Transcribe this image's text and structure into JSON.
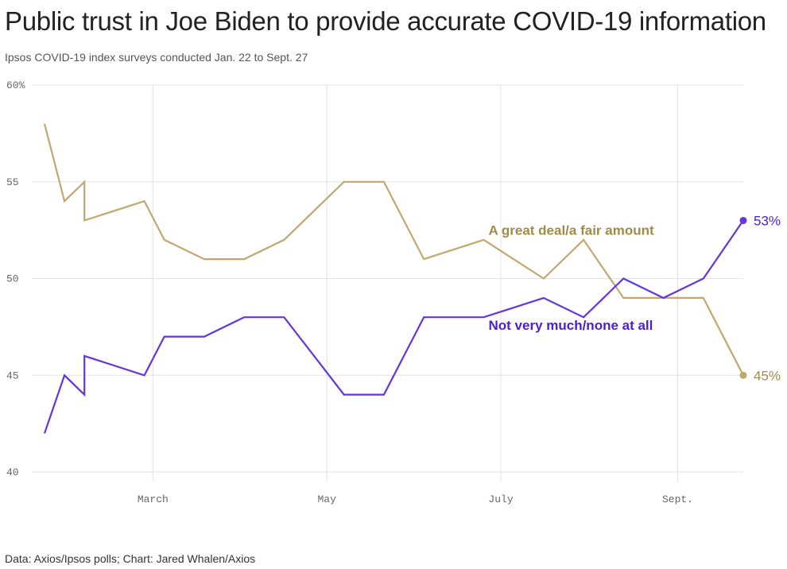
{
  "title": "Public trust in Joe Biden to provide accurate COVID-19 information",
  "subtitle": "Ipsos COVID-19 index surveys conducted Jan. 22 to Sept. 27",
  "source": "Data: Axios/Ipsos polls; Chart: Jared Whalen/Axios",
  "chart_data": {
    "type": "line",
    "x_axis": {
      "ticks": [
        {
          "date": "2021-03-01",
          "label": "March"
        },
        {
          "date": "2021-05-01",
          "label": "May"
        },
        {
          "date": "2021-07-01",
          "label": "July"
        },
        {
          "date": "2021-09-01",
          "label": "Sept."
        }
      ]
    },
    "y_axis": {
      "ylim": [
        40,
        60
      ],
      "ticks": [
        {
          "value": 60,
          "label": "60%"
        },
        {
          "value": 55,
          "label": "55"
        },
        {
          "value": 50,
          "label": "50"
        },
        {
          "value": 45,
          "label": "45"
        },
        {
          "value": 40,
          "label": "40"
        }
      ]
    },
    "grid": true,
    "series": [
      {
        "name": "A great deal/a fair amount",
        "color": "#c0a870",
        "label_color": "#a08a48",
        "end_label": "45%",
        "points": [
          [
            "2021-01-22",
            58
          ],
          [
            "2021-01-29",
            54
          ],
          [
            "2021-02-05",
            55
          ],
          [
            "2021-02-05",
            53
          ],
          [
            "2021-02-26",
            54
          ],
          [
            "2021-03-05",
            52
          ],
          [
            "2021-03-19",
            51
          ],
          [
            "2021-04-02",
            51
          ],
          [
            "2021-04-16",
            52
          ],
          [
            "2021-05-07",
            55
          ],
          [
            "2021-05-21",
            55
          ],
          [
            "2021-06-04",
            51
          ],
          [
            "2021-06-25",
            52
          ],
          [
            "2021-07-16",
            50
          ],
          [
            "2021-07-30",
            52
          ],
          [
            "2021-08-13",
            49
          ],
          [
            "2021-08-27",
            49
          ],
          [
            "2021-09-10",
            49
          ],
          [
            "2021-09-24",
            45
          ]
        ]
      },
      {
        "name": "Not very much/none at all",
        "color": "#6435e0",
        "label_color": "#4a1fd0",
        "end_label": "53%",
        "points": [
          [
            "2021-01-22",
            42
          ],
          [
            "2021-01-29",
            45
          ],
          [
            "2021-02-05",
            44
          ],
          [
            "2021-02-05",
            46
          ],
          [
            "2021-02-26",
            45
          ],
          [
            "2021-03-05",
            47
          ],
          [
            "2021-03-19",
            47
          ],
          [
            "2021-04-02",
            48
          ],
          [
            "2021-04-16",
            48
          ],
          [
            "2021-05-07",
            44
          ],
          [
            "2021-05-21",
            44
          ],
          [
            "2021-06-04",
            48
          ],
          [
            "2021-06-25",
            48
          ],
          [
            "2021-07-16",
            49
          ],
          [
            "2021-07-30",
            48
          ],
          [
            "2021-08-13",
            50
          ],
          [
            "2021-08-27",
            49
          ],
          [
            "2021-09-10",
            50
          ],
          [
            "2021-09-24",
            53
          ]
        ]
      }
    ]
  }
}
